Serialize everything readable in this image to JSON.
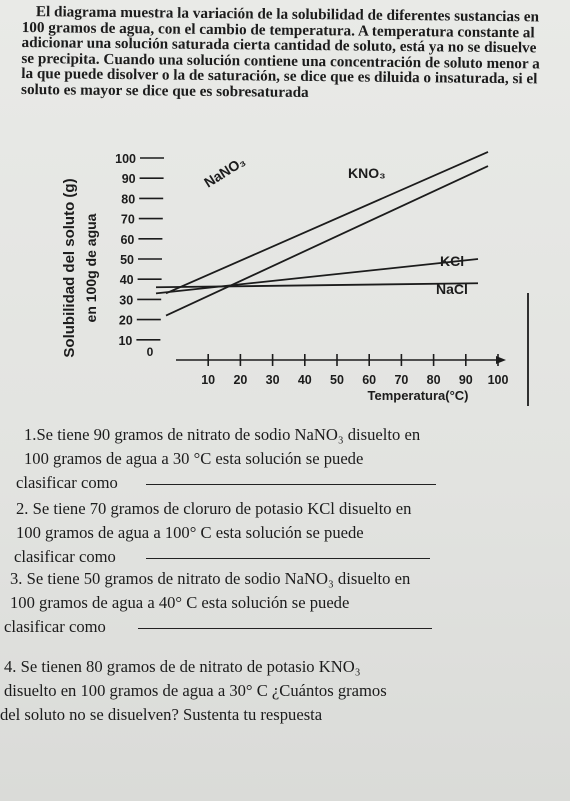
{
  "intro": {
    "text": "El diagrama muestra la variación de la solubilidad de diferentes sustancias en 100 gramos de agua, con el cambio de temperatura. A temperatura constante al adicionar una solución saturada cierta cantidad de soluto, está ya no se disuelve se precipita. Cuando una solución contiene una concentración de soluto menor a la que puede disolver o la de saturación, se dice que es diluida o insaturada, si el soluto es mayor se dice que es sobresaturada"
  },
  "chart_data": {
    "type": "line",
    "ylabel_line1": "Solubilidad del soluto (g)",
    "ylabel_line2": "en 100g de agua",
    "xlabel": "Temperatura(°C)",
    "x_ticks": [
      "10",
      "20",
      "30",
      "40",
      "50",
      "60",
      "70",
      "80",
      "90",
      "100"
    ],
    "y_ticks": [
      "0",
      "10",
      "20",
      "30",
      "40",
      "50",
      "60",
      "70",
      "80",
      "90",
      "100"
    ],
    "xlim": [
      0,
      100
    ],
    "ylim": [
      0,
      100
    ],
    "series": [
      {
        "name": "NaNO3",
        "label": "NaNO₃",
        "x": [
          0,
          100
        ],
        "y": [
          22,
          96
        ]
      },
      {
        "name": "KNO3",
        "label": "KNO₃",
        "x": [
          0,
          100
        ],
        "y": [
          33,
          103
        ]
      },
      {
        "name": "KCl",
        "label": "KCl",
        "x": [
          0,
          100
        ],
        "y": [
          33,
          50
        ]
      },
      {
        "name": "NaCl",
        "label": "NaCl",
        "x": [
          0,
          100
        ],
        "y": [
          36,
          38
        ]
      }
    ]
  },
  "questions": [
    {
      "line1": "1.Se tiene 90 gramos de nitrato de sodio NaNO₃ disuelto en",
      "line2": "100 gramos de agua  a 30 °C esta solución se puede",
      "line3": "clasificar como"
    },
    {
      "line1": "2. Se tiene 70 gramos de cloruro de potasio KCl disuelto en",
      "line2": "100 gramos de agua  a 100° C esta solución se puede",
      "line3": "clasificar como"
    },
    {
      "line1": "3. Se tiene 50 gramos de nitrato de sodio NaNO₃ disuelto en",
      "line2": "100 gramos de agua  a 40° C esta solución se puede",
      "line3": "clasificar como"
    },
    {
      "line1": "4. Se tienen 80 gramos de de nitrato de potasio  KNO₃",
      "line2": "disuelto en 100 gramos de agua  a 30° C ¿Cuántos gramos",
      "line3": "del soluto no se disuelven? Sustenta tu respuesta"
    }
  ]
}
